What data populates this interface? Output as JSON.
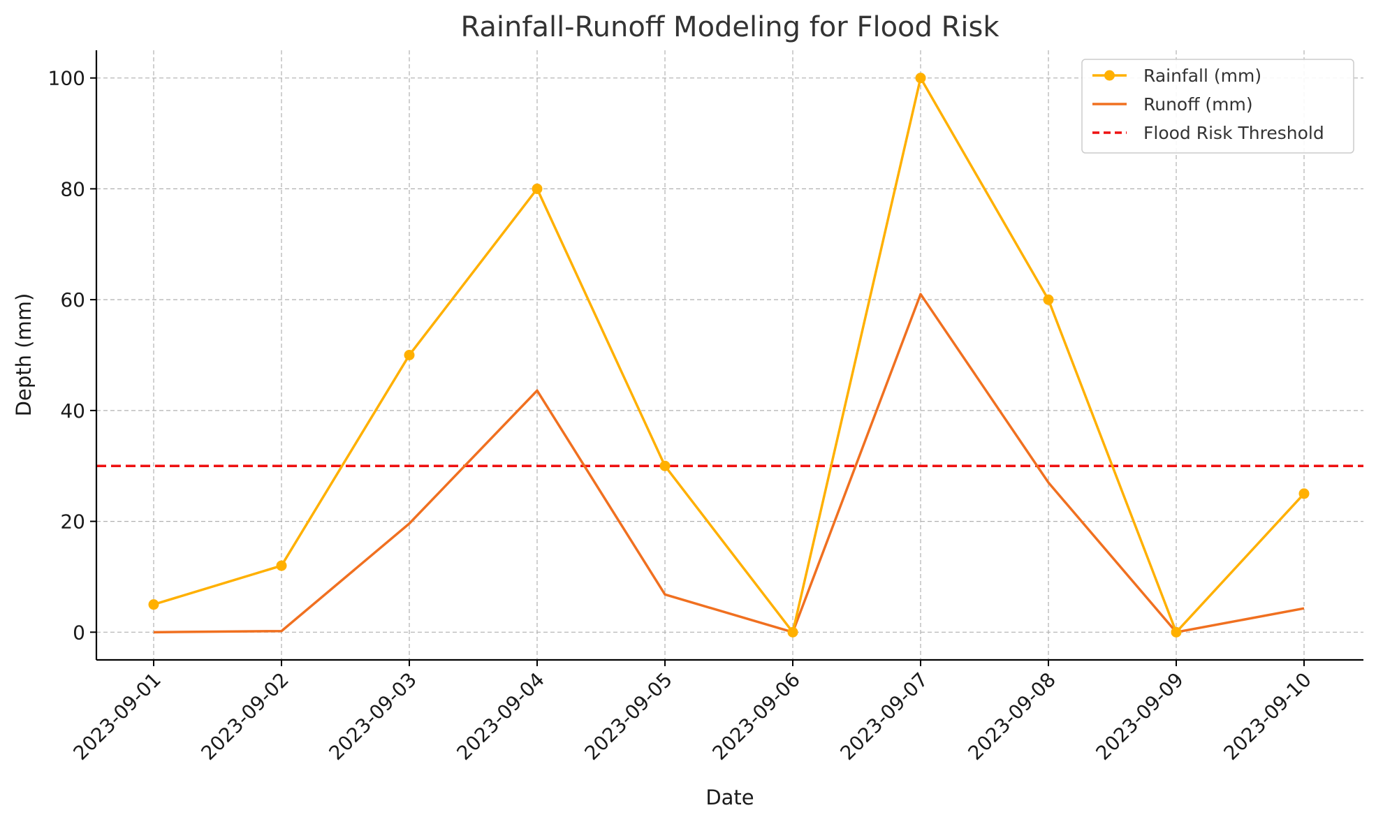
{
  "chart_data": {
    "type": "line",
    "title": "Rainfall-Runoff Modeling for Flood Risk",
    "xlabel": "Date",
    "ylabel": "Depth (mm)",
    "categories": [
      "2023-09-01",
      "2023-09-02",
      "2023-09-03",
      "2023-09-04",
      "2023-09-05",
      "2023-09-06",
      "2023-09-07",
      "2023-09-08",
      "2023-09-09",
      "2023-09-10"
    ],
    "ylim": [
      -5,
      105
    ],
    "yticks": [
      0,
      20,
      40,
      60,
      80,
      100
    ],
    "grid": true,
    "legend_position": "top-right",
    "series": [
      {
        "name": "Rainfall (mm)",
        "color": "#FFB000",
        "marker": "circle",
        "values": [
          5,
          12,
          50,
          80,
          30,
          0,
          100,
          60,
          0,
          25
        ]
      },
      {
        "name": "Runoff (mm)",
        "color": "#F07020",
        "marker": "none",
        "values": [
          0,
          0.2,
          19.6,
          43.6,
          6.8,
          0,
          61,
          27,
          0,
          4.3
        ]
      }
    ],
    "threshold": {
      "name": "Flood Risk Threshold",
      "value": 30,
      "color": "#EE1111",
      "style": "dashed"
    }
  }
}
